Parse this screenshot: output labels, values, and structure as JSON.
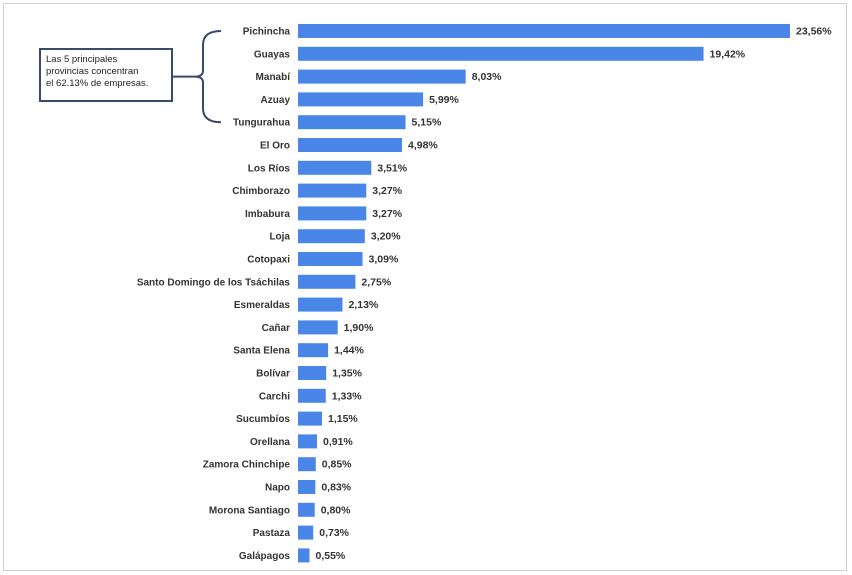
{
  "colors": {
    "bar": "#4a86e8",
    "bracket": "#3a4a6b",
    "text": "#333333"
  },
  "annotation": {
    "line1": "Las 5 principales",
    "line2": "provincias concentran",
    "line3": "el 62.13% de empresas."
  },
  "chart_data": {
    "type": "bar",
    "orientation": "horizontal",
    "categories": [
      "Pichincha",
      "Guayas",
      "Manabí",
      "Azuay",
      "Tungurahua",
      "El Oro",
      "Los Ríos",
      "Chimborazo",
      "Imbabura",
      "Loja",
      "Cotopaxi",
      "Santo Domingo de los Tsáchilas",
      "Esmeraldas",
      "Cañar",
      "Santa Elena",
      "Bolívar",
      "Carchi",
      "Sucumbíos",
      "Orellana",
      "Zamora Chinchipe",
      "Napo",
      "Morona Santiago",
      "Pastaza",
      "Galápagos"
    ],
    "values": [
      23.56,
      19.42,
      8.03,
      5.99,
      5.15,
      4.98,
      3.51,
      3.27,
      3.27,
      3.2,
      3.09,
      2.75,
      2.13,
      1.9,
      1.44,
      1.35,
      1.33,
      1.15,
      0.91,
      0.85,
      0.83,
      0.8,
      0.73,
      0.55
    ],
    "value_labels": [
      "23,56%",
      "19,42%",
      "8,03%",
      "5,99%",
      "5,15%",
      "4,98%",
      "3,51%",
      "3,27%",
      "3,27%",
      "3,20%",
      "3,09%",
      "2,75%",
      "2,13%",
      "1,90%",
      "1,44%",
      "1,35%",
      "1,33%",
      "1,15%",
      "0,91%",
      "0,85%",
      "0,83%",
      "0,80%",
      "0,73%",
      "0,55%"
    ],
    "title": "",
    "xlabel": "",
    "ylabel": "",
    "grid": false,
    "legend": "none"
  }
}
